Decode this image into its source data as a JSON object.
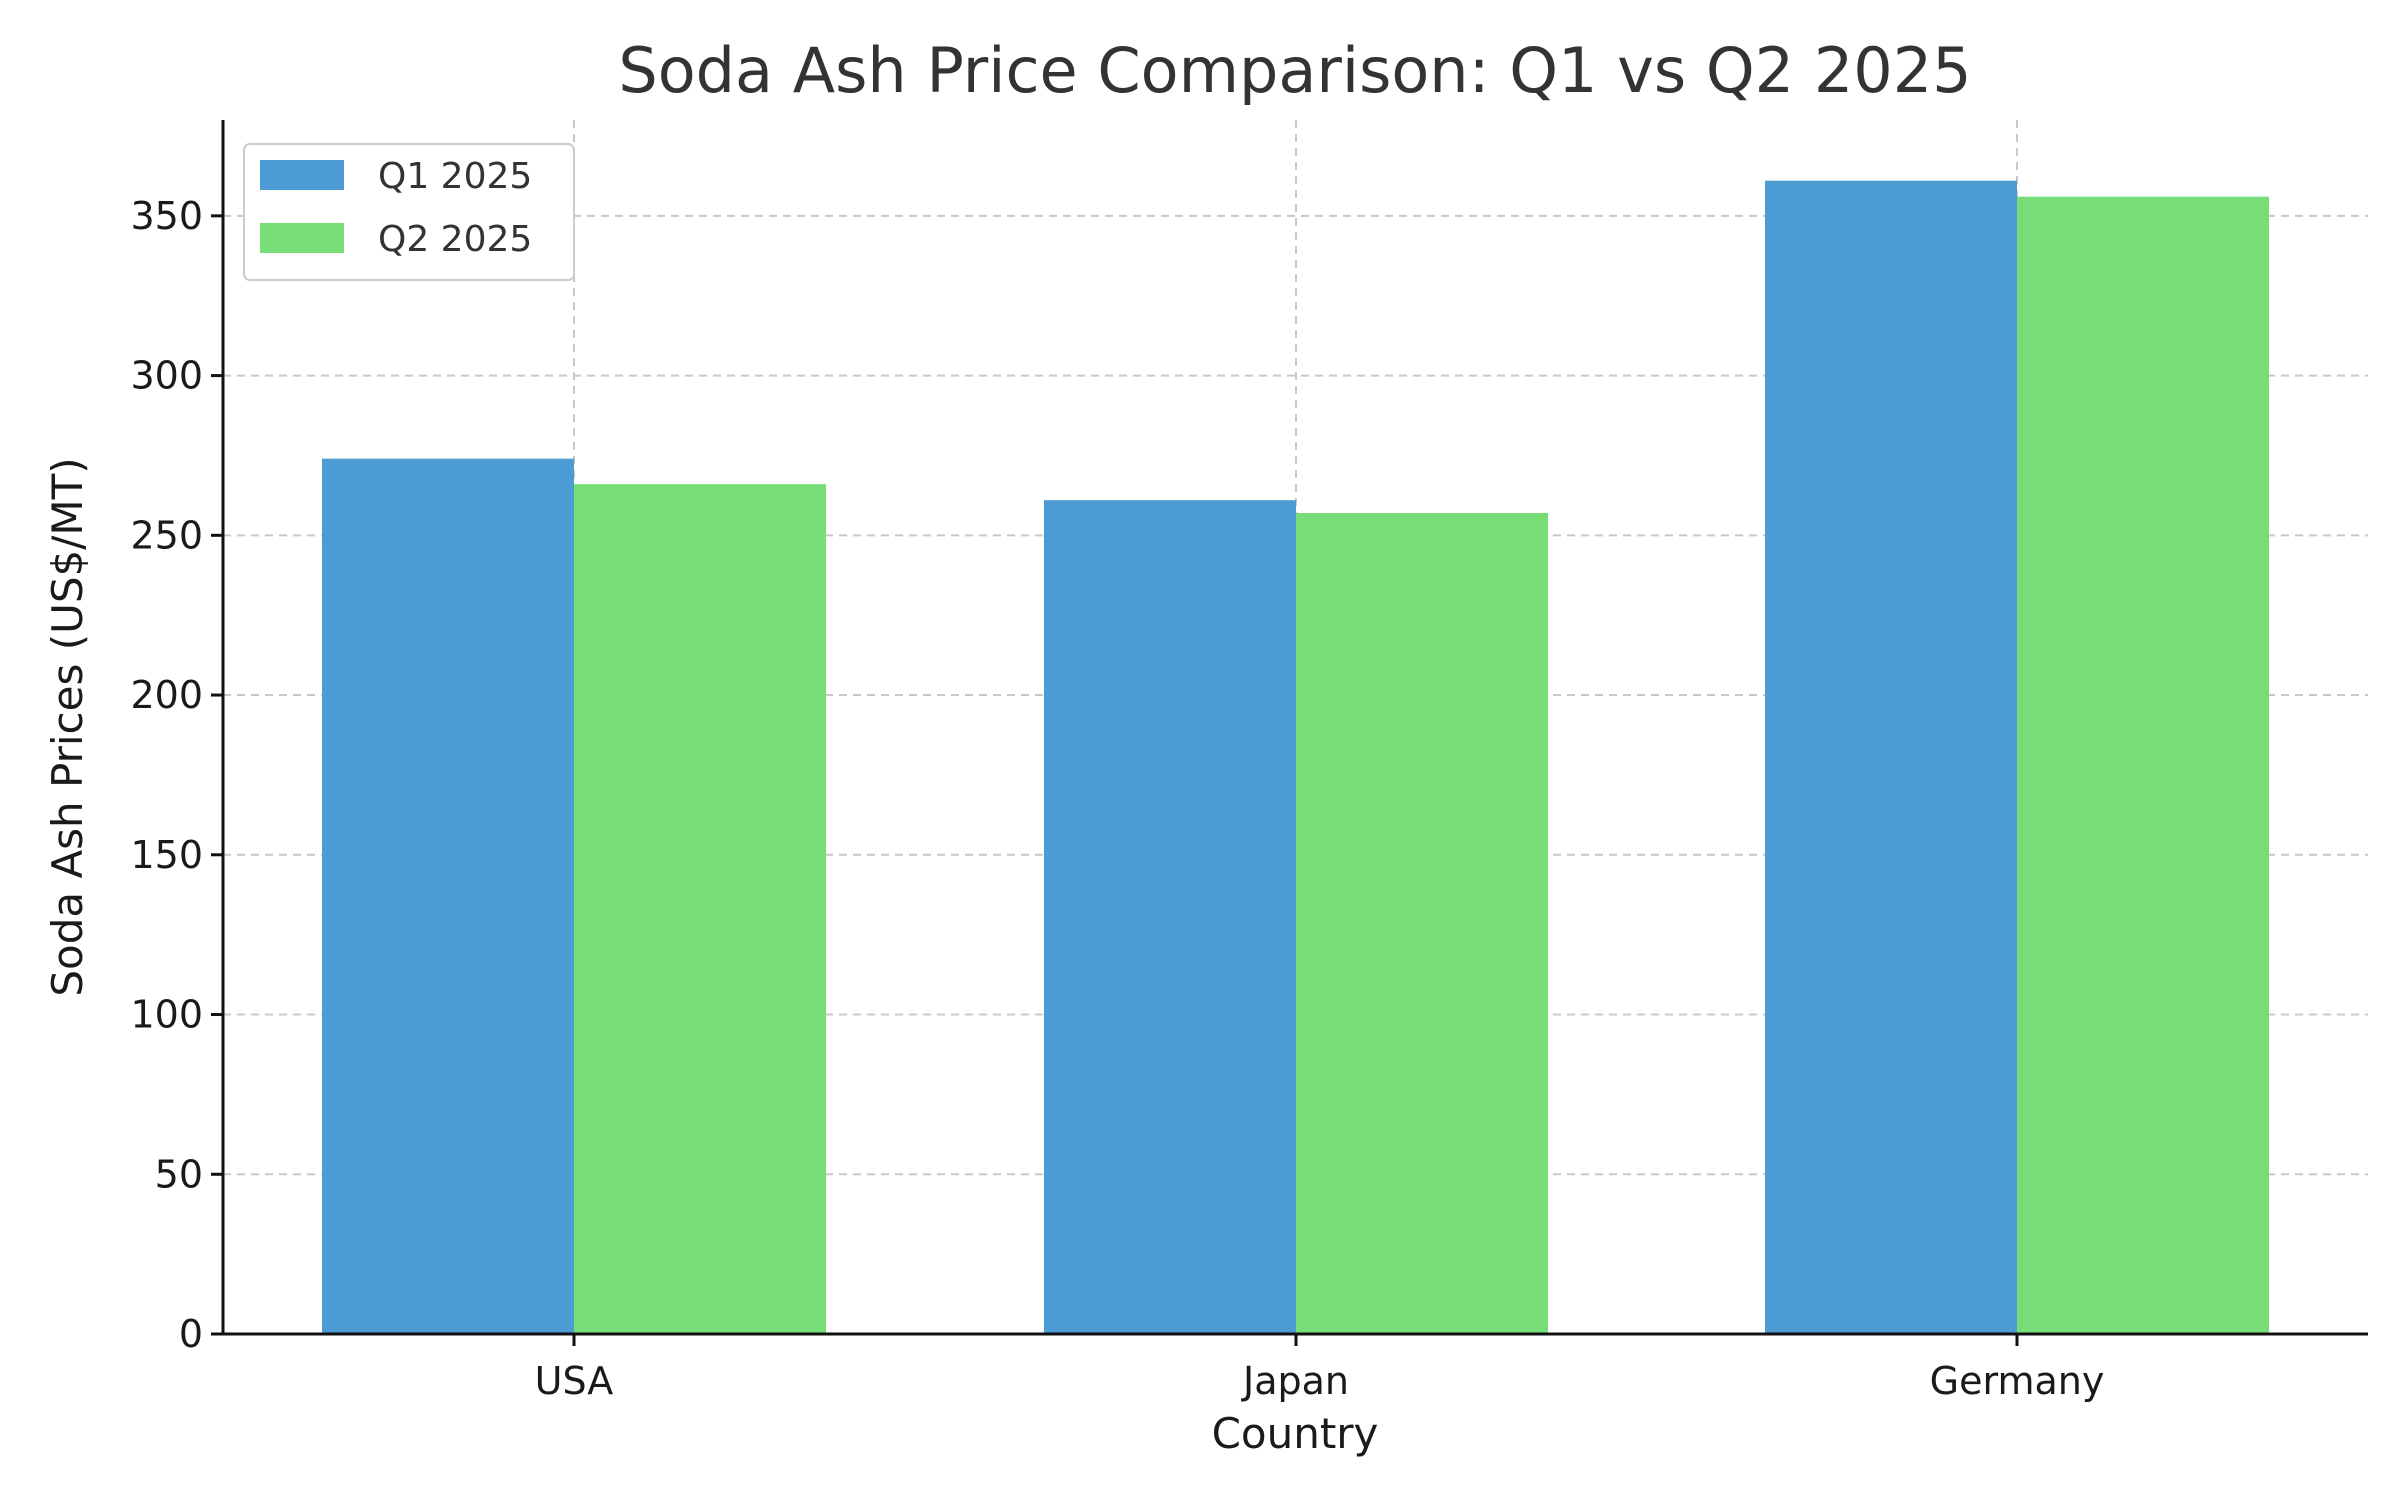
{
  "chart_data": {
    "type": "bar",
    "title": "Soda Ash Price Comparison: Q1 vs Q2 2025",
    "xlabel": "Country",
    "ylabel": "Soda Ash Prices (US$/MT)",
    "categories": [
      "USA",
      "Japan",
      "Germany"
    ],
    "series": [
      {
        "name": "Q1 2025",
        "color": "#4c9bd3",
        "values": [
          274,
          261,
          361
        ]
      },
      {
        "name": "Q2 2025",
        "color": "#77dd77",
        "values": [
          266,
          257,
          356
        ]
      }
    ],
    "ylim": [
      0,
      380
    ],
    "yticks": [
      0,
      50,
      100,
      150,
      200,
      250,
      300,
      350
    ],
    "grid": true,
    "legend_position": "top-left"
  }
}
